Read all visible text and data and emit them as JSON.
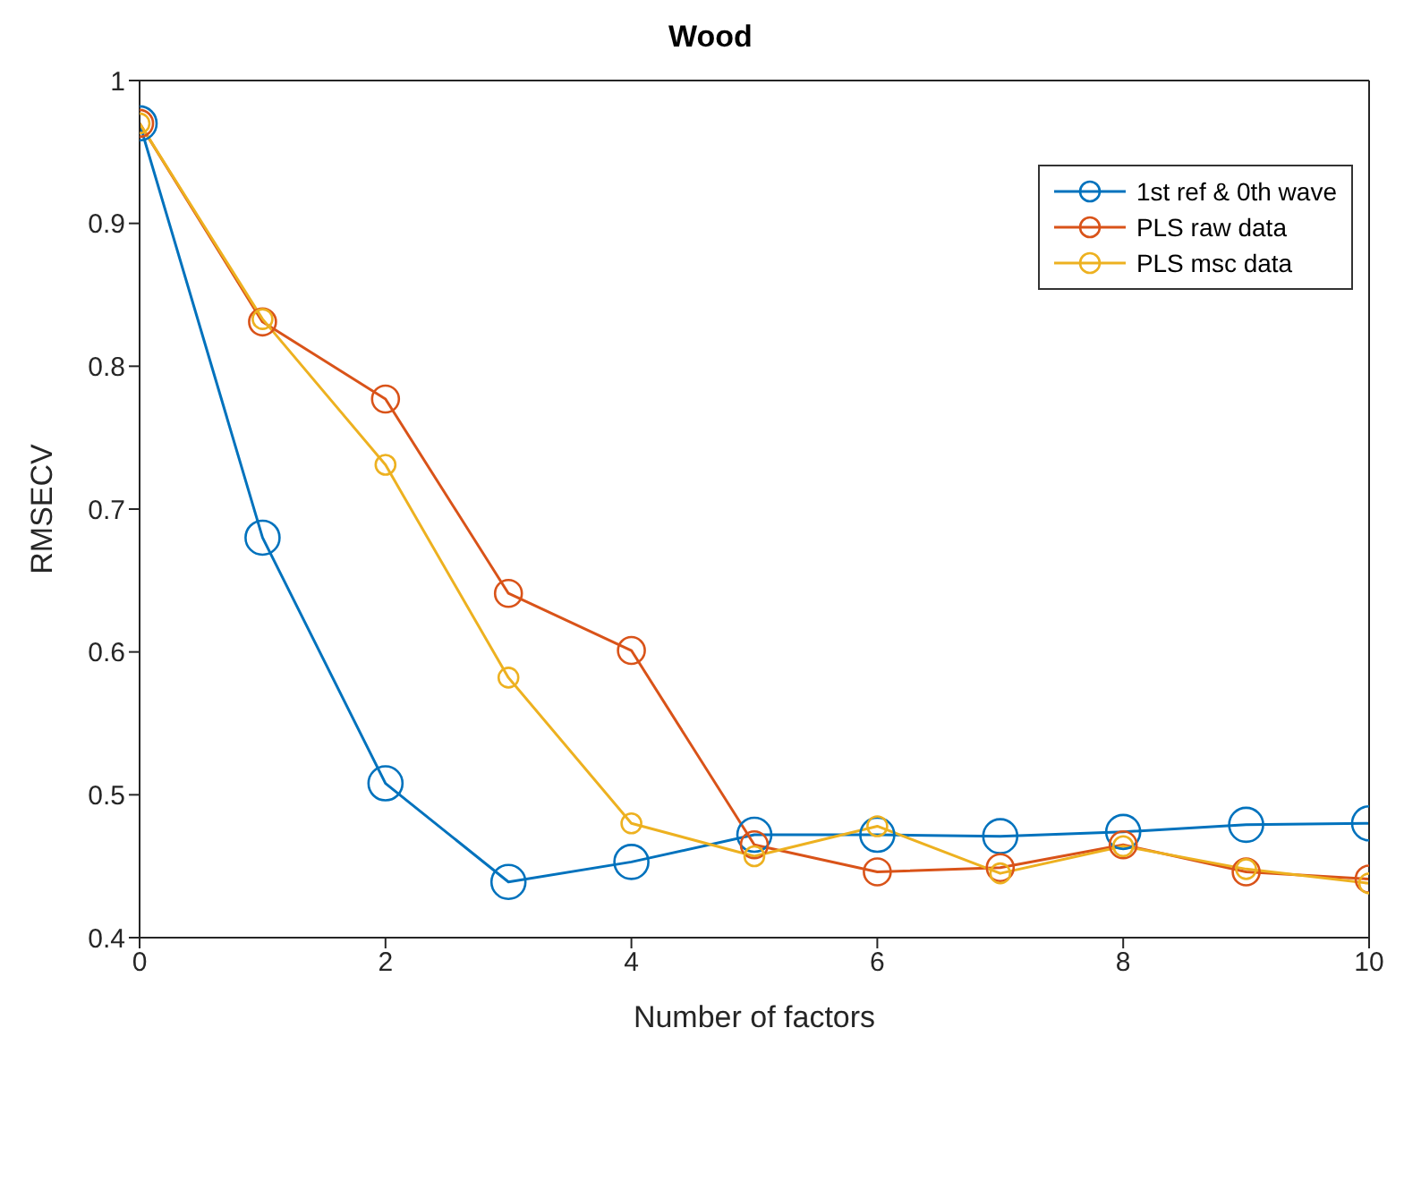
{
  "chart_data": {
    "type": "line",
    "title": "Wood",
    "xlabel": "Number of factors",
    "ylabel": "RMSECV",
    "x": [
      0,
      1,
      2,
      3,
      4,
      5,
      6,
      7,
      8,
      9,
      10
    ],
    "series": [
      {
        "name": "1st ref & 0th wave",
        "color": "#0072bd",
        "values": [
          0.97,
          0.68,
          0.508,
          0.439,
          0.453,
          0.472,
          0.472,
          0.471,
          0.474,
          0.479,
          0.48
        ]
      },
      {
        "name": "PLS raw data",
        "color": "#d95319",
        "values": [
          0.97,
          0.831,
          0.777,
          0.641,
          0.601,
          0.465,
          0.446,
          0.449,
          0.465,
          0.446,
          0.441
        ]
      },
      {
        "name": "PLS msc data",
        "color": "#edb120",
        "values": [
          0.97,
          0.833,
          0.731,
          0.582,
          0.48,
          0.457,
          0.478,
          0.445,
          0.464,
          0.448,
          0.438
        ]
      }
    ],
    "xlim": [
      0,
      10
    ],
    "xticks": [
      0,
      2,
      4,
      6,
      8,
      10
    ],
    "ylim": [
      0.4,
      1
    ],
    "yticks": [
      0.4,
      0.5,
      0.6,
      0.7,
      0.8,
      0.9,
      1
    ],
    "legend": "top right",
    "marker": "circle",
    "line_style": "solid",
    "grid": false
  }
}
